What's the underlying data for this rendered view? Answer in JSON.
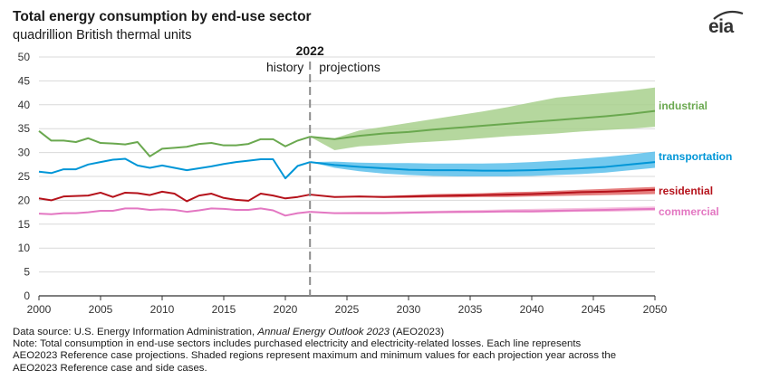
{
  "header": {
    "title": "Total energy consumption by end-use sector",
    "subtitle": "quadrillion British thermal units",
    "logo_text": "eia"
  },
  "marker": {
    "year_label": "2022",
    "left_label": "history",
    "right_label": "projections"
  },
  "notes": {
    "source_prefix": "Data source: U.S. Energy Information Administration, ",
    "source_title": "Annual Energy Outlook 2023",
    "source_suffix": " (AEO2023)",
    "note_line1": "Note: Total consumption in end-use sectors includes purchased electricity and electricity-related losses. Each line represents",
    "note_line2": "AEO2023 Reference case projections. Shaded regions represent maximum and minimum values for each projection year across the",
    "note_line3": "AEO2023 Reference case and side cases."
  },
  "chart_data": {
    "type": "line",
    "title": "Total energy consumption by end-use sector",
    "subtitle": "quadrillion British thermal units",
    "xlim": [
      2000,
      2050
    ],
    "ylim": [
      0,
      50
    ],
    "x_ticks": [
      2000,
      2005,
      2010,
      2015,
      2020,
      2025,
      2030,
      2035,
      2040,
      2045,
      2050
    ],
    "y_ticks": [
      0,
      5,
      10,
      15,
      20,
      25,
      30,
      35,
      40,
      45,
      50
    ],
    "grid": "horizontal",
    "vertical_marker_x": 2022,
    "series": [
      {
        "name": "industrial",
        "color": "#6aa84f",
        "band_color": "#a8d08d",
        "history_x": [
          2000,
          2001,
          2002,
          2003,
          2004,
          2005,
          2006,
          2007,
          2008,
          2009,
          2010,
          2011,
          2012,
          2013,
          2014,
          2015,
          2016,
          2017,
          2018,
          2019,
          2020,
          2021,
          2022
        ],
        "history_y": [
          34.5,
          32.5,
          32.5,
          32.2,
          33.0,
          32.0,
          31.9,
          31.7,
          32.2,
          29.2,
          30.8,
          31.0,
          31.2,
          31.8,
          32.0,
          31.5,
          31.5,
          31.8,
          32.8,
          32.8,
          31.3,
          32.5,
          33.3
        ],
        "proj_x": [
          2022,
          2024,
          2026,
          2028,
          2030,
          2032,
          2034,
          2036,
          2038,
          2040,
          2042,
          2044,
          2046,
          2048,
          2050
        ],
        "proj_y": [
          33.3,
          32.8,
          33.5,
          34.0,
          34.3,
          34.8,
          35.2,
          35.6,
          36.0,
          36.4,
          36.8,
          37.2,
          37.6,
          38.1,
          38.7
        ],
        "band_min": [
          33.3,
          30.5,
          31.3,
          31.6,
          32.0,
          32.3,
          32.6,
          33.0,
          33.4,
          33.7,
          34.0,
          34.4,
          34.7,
          35.0,
          35.4
        ],
        "band_max": [
          33.3,
          33.0,
          34.6,
          35.4,
          36.2,
          37.0,
          37.8,
          38.6,
          39.5,
          40.5,
          41.5,
          42.0,
          42.5,
          43.0,
          43.6
        ]
      },
      {
        "name": "transportation",
        "color": "#0096d7",
        "band_color": "#5bc0eb",
        "history_x": [
          2000,
          2001,
          2002,
          2003,
          2004,
          2005,
          2006,
          2007,
          2008,
          2009,
          2010,
          2011,
          2012,
          2013,
          2014,
          2015,
          2016,
          2017,
          2018,
          2019,
          2020,
          2021,
          2022
        ],
        "history_y": [
          26.0,
          25.7,
          26.5,
          26.5,
          27.5,
          28.0,
          28.5,
          28.7,
          27.3,
          26.8,
          27.3,
          26.8,
          26.3,
          26.7,
          27.1,
          27.6,
          28.0,
          28.3,
          28.6,
          28.6,
          24.6,
          27.2,
          28.0
        ],
        "proj_x": [
          2022,
          2024,
          2026,
          2028,
          2030,
          2032,
          2034,
          2036,
          2038,
          2040,
          2042,
          2044,
          2046,
          2048,
          2050
        ],
        "proj_y": [
          28.0,
          27.4,
          27.0,
          26.7,
          26.4,
          26.3,
          26.3,
          26.2,
          26.2,
          26.3,
          26.5,
          26.7,
          27.0,
          27.5,
          28.0
        ],
        "band_min": [
          28.0,
          26.8,
          26.1,
          25.6,
          25.3,
          25.1,
          25.0,
          25.0,
          25.0,
          25.1,
          25.3,
          25.5,
          25.8,
          26.3,
          26.8
        ],
        "band_max": [
          28.0,
          28.1,
          27.9,
          27.8,
          27.8,
          27.7,
          27.7,
          27.7,
          27.8,
          28.0,
          28.3,
          28.7,
          29.1,
          29.6,
          30.2
        ]
      },
      {
        "name": "residential",
        "color": "#b5121b",
        "band_color": "#e06666",
        "history_x": [
          2000,
          2001,
          2002,
          2003,
          2004,
          2005,
          2006,
          2007,
          2008,
          2009,
          2010,
          2011,
          2012,
          2013,
          2014,
          2015,
          2016,
          2017,
          2018,
          2019,
          2020,
          2021,
          2022
        ],
        "history_y": [
          20.4,
          20.0,
          20.8,
          20.9,
          21.0,
          21.6,
          20.7,
          21.6,
          21.5,
          21.1,
          21.8,
          21.4,
          19.8,
          21.0,
          21.4,
          20.5,
          20.1,
          19.9,
          21.4,
          21.0,
          20.4,
          20.7,
          21.2
        ],
        "proj_x": [
          2022,
          2024,
          2026,
          2028,
          2030,
          2032,
          2034,
          2036,
          2038,
          2040,
          2042,
          2044,
          2046,
          2048,
          2050
        ],
        "proj_y": [
          21.2,
          20.7,
          20.8,
          20.7,
          20.8,
          20.9,
          21.0,
          21.1,
          21.2,
          21.3,
          21.5,
          21.7,
          21.8,
          22.0,
          22.2
        ],
        "band_min": [
          21.2,
          20.6,
          20.6,
          20.5,
          20.5,
          20.6,
          20.6,
          20.7,
          20.7,
          20.8,
          20.9,
          21.0,
          21.1,
          21.2,
          21.3
        ],
        "band_max": [
          21.2,
          20.8,
          20.9,
          20.9,
          21.1,
          21.3,
          21.4,
          21.5,
          21.7,
          21.8,
          22.0,
          22.2,
          22.4,
          22.6,
          22.8
        ]
      },
      {
        "name": "commercial",
        "color": "#e377c2",
        "band_color": "#f4b6d9",
        "history_x": [
          2000,
          2001,
          2002,
          2003,
          2004,
          2005,
          2006,
          2007,
          2008,
          2009,
          2010,
          2011,
          2012,
          2013,
          2014,
          2015,
          2016,
          2017,
          2018,
          2019,
          2020,
          2021,
          2022
        ],
        "history_y": [
          17.2,
          17.1,
          17.3,
          17.3,
          17.5,
          17.8,
          17.8,
          18.3,
          18.3,
          18.0,
          18.1,
          18.0,
          17.6,
          17.9,
          18.3,
          18.2,
          18.0,
          18.0,
          18.3,
          17.9,
          16.8,
          17.3,
          17.6
        ],
        "proj_x": [
          2022,
          2024,
          2026,
          2028,
          2030,
          2032,
          2034,
          2036,
          2038,
          2040,
          2042,
          2044,
          2046,
          2048,
          2050
        ],
        "proj_y": [
          17.6,
          17.3,
          17.3,
          17.3,
          17.4,
          17.5,
          17.6,
          17.6,
          17.7,
          17.7,
          17.8,
          17.9,
          18.0,
          18.1,
          18.2
        ],
        "band_min": [
          17.6,
          17.2,
          17.2,
          17.2,
          17.2,
          17.3,
          17.3,
          17.4,
          17.4,
          17.4,
          17.5,
          17.6,
          17.6,
          17.7,
          17.8
        ],
        "band_max": [
          17.6,
          17.5,
          17.6,
          17.6,
          17.7,
          17.8,
          17.9,
          18.0,
          18.1,
          18.2,
          18.3,
          18.4,
          18.5,
          18.6,
          18.7
        ]
      }
    ]
  }
}
